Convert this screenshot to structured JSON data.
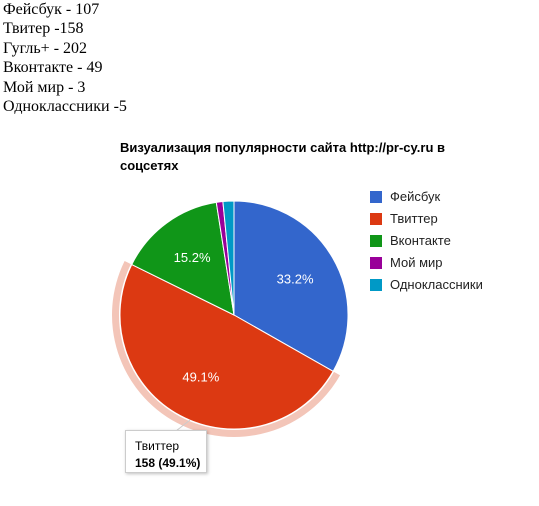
{
  "stats": [
    "Фейсбук - 107",
    "Твитер -158",
    "Гугль+ - 202",
    "Вконтакте - 49",
    "Мой мир - 3",
    "Одноклассники -5"
  ],
  "chart_data": {
    "type": "pie",
    "title": "Визуализация популярности сайта http://pr-cy.ru в соцсетях",
    "categories": [
      "Фейсбук",
      "Твиттер",
      "Вконтакте",
      "Мой мир",
      "Одноклассники"
    ],
    "values": [
      107,
      158,
      49,
      3,
      5
    ],
    "slice_labels": [
      "33.2%",
      "49.1%",
      "15.2%",
      "",
      ""
    ],
    "colors": [
      "#3366cc",
      "#dc3912",
      "#109618",
      "#990099",
      "#0099c6"
    ],
    "highlighted_slice": 1,
    "highlight_color": "#f3c5b8",
    "legend_position": "right",
    "tooltip": {
      "label": "Твиттер",
      "value": "158 (49.1%)"
    }
  }
}
